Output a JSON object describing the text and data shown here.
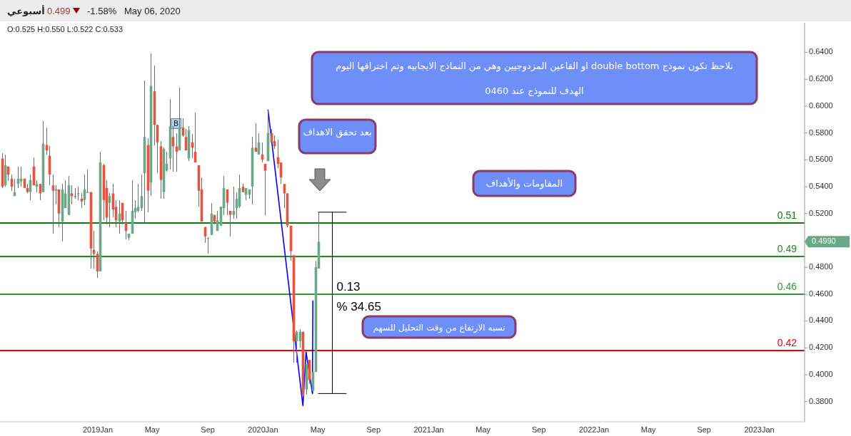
{
  "chart_data": {
    "type": "candlestick",
    "title": "أسبوعي",
    "subtitle": "O:0.525 H:0.550 L:0.522 C:0.533",
    "annotations": [
      "0.499",
      "-1.58%",
      "May 06, 2020",
      "نلاحظ تكون نموذج double bottom او القاعين المزدوجيين وهي من النماذج الايجابيه وتم اختراقها اليوم",
      "الهدف للنموذج عند 0460",
      "بعد تحقق الاهداف",
      "المقاومات والأهداف",
      "نسبه الارتفاع من وقت التحليل للسهم",
      "0.13",
      "% 34.65",
      {
        "text": "B",
        "x": "2019-06-23",
        "y": 0.587
      },
      "0.4990"
    ],
    "series": [
      {
        "x": [
          "2018-06-03",
          "2018-06-10",
          "2018-06-17",
          "2018-06-24",
          "2018-07-01",
          "2018-07-08",
          "2018-07-15",
          "2018-07-22",
          "2018-07-29",
          "2018-08-05",
          "2018-08-12",
          "2018-08-19",
          "2018-08-26",
          "2018-09-02",
          "2018-09-09",
          "2018-09-16",
          "2018-09-23",
          "2018-09-30",
          "2018-10-07",
          "2018-10-14",
          "2018-10-21",
          "2018-10-28",
          "2018-11-04",
          "2018-11-11",
          "2018-11-18",
          "2018-11-25",
          "2018-12-02",
          "2018-12-09",
          "2018-12-16",
          "2018-12-23",
          "2018-12-30",
          "2019-01-06",
          "2019-01-13",
          "2019-01-20",
          "2019-01-27",
          "2019-02-03",
          "2019-02-10",
          "2019-02-17",
          "2019-02-24",
          "2019-03-03",
          "2019-03-10",
          "2019-03-17",
          "2019-03-24",
          "2019-03-31",
          "2019-04-07",
          "2019-04-14",
          "2019-04-21",
          "2019-04-28",
          "2019-05-05",
          "2019-05-12",
          "2019-05-19",
          "2019-05-26",
          "2019-06-02",
          "2019-06-09",
          "2019-06-16",
          "2019-06-23",
          "2019-06-30",
          "2019-07-07",
          "2019-07-14",
          "2019-07-21",
          "2019-07-28",
          "2019-08-04",
          "2019-08-11",
          "2019-08-18",
          "2019-08-25",
          "2019-09-01",
          "2019-09-08",
          "2019-09-15",
          "2019-09-22",
          "2019-09-29",
          "2019-10-06",
          "2019-10-13",
          "2019-10-20",
          "2019-10-27",
          "2019-11-03",
          "2019-11-10",
          "2019-11-17",
          "2019-11-24",
          "2019-12-01",
          "2019-12-08",
          "2019-12-15",
          "2019-12-22",
          "2019-12-29",
          "2020-01-05",
          "2020-01-12",
          "2020-01-19",
          "2020-01-26",
          "2020-02-02",
          "2020-02-09",
          "2020-02-16",
          "2020-02-23",
          "2020-03-01",
          "2020-03-08",
          "2020-03-15",
          "2020-03-22",
          "2020-03-29",
          "2020-04-05",
          "2020-04-12",
          "2020-04-19",
          "2020-04-26",
          "2020-05-03"
        ],
        "ohlc": [
          [
            0.561,
            0.565,
            0.539,
            0.54
          ],
          [
            0.541,
            0.564,
            0.54,
            0.556
          ],
          [
            0.555,
            0.555,
            0.544,
            0.549
          ],
          [
            0.546,
            0.549,
            0.537,
            0.54
          ],
          [
            0.533,
            0.546,
            0.533,
            0.536
          ],
          [
            0.542,
            0.555,
            0.539,
            0.546
          ],
          [
            0.544,
            0.555,
            0.54,
            0.546
          ],
          [
            0.546,
            0.546,
            0.539,
            0.539
          ],
          [
            0.539,
            0.542,
            0.535,
            0.536
          ],
          [
            0.536,
            0.549,
            0.53,
            0.545
          ],
          [
            0.555,
            0.562,
            0.541,
            0.541
          ],
          [
            0.54,
            0.545,
            0.536,
            0.542
          ],
          [
            0.542,
            0.542,
            0.53,
            0.535
          ],
          [
            0.536,
            0.589,
            0.536,
            0.572
          ],
          [
            0.571,
            0.584,
            0.564,
            0.567
          ],
          [
            0.563,
            0.57,
            0.541,
            0.549
          ],
          [
            0.541,
            0.549,
            0.505,
            0.537
          ],
          [
            0.537,
            0.541,
            0.527,
            0.538
          ],
          [
            0.538,
            0.538,
            0.51,
            0.52
          ],
          [
            0.514,
            0.542,
            0.499,
            0.538
          ],
          [
            0.524,
            0.545,
            0.524,
            0.535
          ],
          [
            0.519,
            0.548,
            0.519,
            0.541
          ],
          [
            0.535,
            0.541,
            0.527,
            0.533
          ],
          [
            0.533,
            0.539,
            0.531,
            0.533
          ],
          [
            0.535,
            0.54,
            0.53,
            0.535
          ],
          [
            0.531,
            0.535,
            0.524,
            0.529
          ],
          [
            0.53,
            0.549,
            0.526,
            0.538
          ],
          [
            0.536,
            0.553,
            0.536,
            0.536
          ],
          [
            0.536,
            0.536,
            0.479,
            0.494
          ],
          [
            0.493,
            0.507,
            0.479,
            0.49
          ],
          [
            0.49,
            0.492,
            0.472,
            0.477
          ],
          [
            0.477,
            0.566,
            0.477,
            0.558
          ],
          [
            0.556,
            0.557,
            0.515,
            0.53
          ],
          [
            0.539,
            0.545,
            0.512,
            0.517
          ],
          [
            0.528,
            0.535,
            0.51,
            0.533
          ],
          [
            0.535,
            0.542,
            0.517,
            0.523
          ],
          [
            0.525,
            0.53,
            0.51,
            0.515
          ],
          [
            0.514,
            0.53,
            0.505,
            0.52
          ],
          [
            0.528,
            0.528,
            0.512,
            0.515
          ],
          [
            0.513,
            0.522,
            0.501,
            0.507
          ],
          [
            0.502,
            0.505,
            0.5,
            0.505
          ],
          [
            0.505,
            0.545,
            0.505,
            0.522
          ],
          [
            0.521,
            0.53,
            0.516,
            0.524
          ],
          [
            0.522,
            0.542,
            0.521,
            0.525
          ],
          [
            0.524,
            0.549,
            0.522,
            0.533
          ],
          [
            0.55,
            0.619,
            0.513,
            0.577
          ],
          [
            0.571,
            0.576,
            0.521,
            0.537
          ],
          [
            0.543,
            0.639,
            0.533,
            0.615
          ],
          [
            0.611,
            0.63,
            0.571,
            0.586
          ],
          [
            0.586,
            0.586,
            0.55,
            0.573
          ],
          [
            0.57,
            0.574,
            0.531,
            0.545
          ],
          [
            0.536,
            0.569,
            0.531,
            0.568
          ],
          [
            0.552,
            0.566,
            0.551,
            0.557
          ],
          [
            0.561,
            0.605,
            0.553,
            0.585
          ],
          [
            0.577,
            0.585,
            0.551,
            0.57
          ],
          [
            0.57,
            0.58,
            0.551,
            0.566
          ],
          [
            0.567,
            0.614,
            0.567,
            0.584
          ],
          [
            0.584,
            0.591,
            0.577,
            0.578
          ],
          [
            0.577,
            0.583,
            0.567,
            0.567
          ],
          [
            0.561,
            0.585,
            0.559,
            0.582
          ],
          [
            0.573,
            0.579,
            0.561,
            0.569
          ],
          [
            0.566,
            0.595,
            0.558,
            0.558
          ],
          [
            0.556,
            0.556,
            0.525,
            0.537
          ],
          [
            0.538,
            0.547,
            0.514,
            0.514
          ],
          [
            0.51,
            0.51,
            0.498,
            0.503
          ],
          [
            0.502,
            0.502,
            0.49,
            0.502
          ],
          [
            0.504,
            0.528,
            0.504,
            0.52
          ],
          [
            0.519,
            0.519,
            0.512,
            0.514
          ],
          [
            0.507,
            0.522,
            0.507,
            0.515
          ],
          [
            0.511,
            0.525,
            0.511,
            0.525
          ],
          [
            0.524,
            0.548,
            0.519,
            0.539
          ],
          [
            0.538,
            0.538,
            0.519,
            0.528
          ],
          [
            0.522,
            0.522,
            0.503,
            0.519
          ],
          [
            0.519,
            0.54,
            0.516,
            0.522
          ],
          [
            0.524,
            0.536,
            0.516,
            0.531
          ],
          [
            0.525,
            0.549,
            0.524,
            0.539
          ],
          [
            0.54,
            0.542,
            0.536,
            0.536
          ],
          [
            0.534,
            0.539,
            0.53,
            0.539
          ],
          [
            0.534,
            0.538,
            0.531,
            0.538
          ],
          [
            0.54,
            0.577,
            0.527,
            0.569
          ],
          [
            0.569,
            0.587,
            0.566,
            0.566
          ],
          [
            0.564,
            0.58,
            0.564,
            0.573
          ],
          [
            0.564,
            0.573,
            0.558,
            0.56
          ],
          [
            0.557,
            0.557,
            0.519,
            0.552
          ],
          [
            0.559,
            0.597,
            0.559,
            0.58
          ],
          [
            0.58,
            0.583,
            0.573,
            0.573
          ],
          [
            0.574,
            0.578,
            0.568,
            0.57
          ],
          [
            0.562,
            0.575,
            0.554,
            0.557
          ],
          [
            0.558,
            0.558,
            0.542,
            0.547
          ],
          [
            0.542,
            0.542,
            0.524,
            0.535
          ],
          [
            0.535,
            0.535,
            0.51,
            0.511
          ],
          [
            0.511,
            0.511,
            0.485,
            0.492
          ],
          [
            0.489,
            0.489,
            0.409,
            0.425
          ],
          [
            0.425,
            0.433,
            0.409,
            0.432
          ],
          [
            0.425,
            0.434,
            0.42,
            0.432
          ],
          [
            0.432,
            0.432,
            0.384,
            0.384
          ],
          [
            0.389,
            0.408,
            0.385,
            0.408
          ],
          [
            0.411,
            0.411,
            0.393,
            0.396
          ],
          [
            0.388,
            0.402,
            0.386,
            0.402
          ],
          [
            0.402,
            0.485,
            0.402,
            0.48
          ],
          [
            0.479,
            0.521,
            0.479,
            0.499
          ]
        ],
        "colors": [
          "#e8533f",
          "#6aa889",
          "#e8533f",
          "#e8533f",
          "#6aa889",
          "#6aa889",
          "#6aa889",
          "#e8533f",
          "#e8533f",
          "#6aa889",
          "#e8533f",
          "#6aa889",
          "#e8533f",
          "#6aa889",
          "#e8533f",
          "#e8533f",
          "#e8533f",
          "#6aa889",
          "#e8533f",
          "#6aa889",
          "#6aa889",
          "#6aa889",
          "#e8533f",
          "#6e6e6e",
          "#6e6e6e",
          "#e8533f",
          "#6aa889",
          "#6e6e6e",
          "#e8533f",
          "#e8533f",
          "#e8533f",
          "#6aa889",
          "#e8533f",
          "#e8533f",
          "#6aa889",
          "#e8533f",
          "#e8533f",
          "#6aa889",
          "#e8533f",
          "#e8533f",
          "#6aa889",
          "#6aa889",
          "#6aa889",
          "#6aa889",
          "#6aa889",
          "#6aa889",
          "#e8533f",
          "#6aa889",
          "#e8533f",
          "#e8533f",
          "#e8533f",
          "#6aa889",
          "#6aa889",
          "#6aa889",
          "#e8533f",
          "#e8533f",
          "#6aa889",
          "#e8533f",
          "#e8533f",
          "#6aa889",
          "#e8533f",
          "#e8533f",
          "#e8533f",
          "#e8533f",
          "#e8533f",
          "#6e6e6e",
          "#6aa889",
          "#e8533f",
          "#6aa889",
          "#6aa889",
          "#6aa889",
          "#e8533f",
          "#e8533f",
          "#6aa889",
          "#6aa889",
          "#6aa889",
          "#e8533f",
          "#6aa889",
          "#6aa889",
          "#6aa889",
          "#e8533f",
          "#6aa889",
          "#e8533f",
          "#e8533f",
          "#6aa889",
          "#e8533f",
          "#e8533f",
          "#e8533f",
          "#e8533f",
          "#e8533f",
          "#e8533f",
          "#e8533f",
          "#e8533f",
          "#6aa889",
          "#6aa889",
          "#e8533f",
          "#6aa889",
          "#e8533f",
          "#6aa889",
          "#6aa889",
          "#6aa889"
        ]
      },
      {
        "type": "line",
        "color": "#0000ff",
        "x": [
          "2020-01-12",
          "2020-03-29",
          "2020-04-05",
          "2020-04-19",
          "2020-04-20"
        ],
        "values": [
          0.597,
          0.377,
          0.417,
          0.386,
          0.455
        ]
      }
    ],
    "xlim": [
      "2018-05-30",
      "2023-04-11"
    ],
    "xticks": [
      {
        "value": "2019-01-01",
        "label": "2019Jan"
      },
      {
        "value": "2019-05-01",
        "label": "May"
      },
      {
        "value": "2019-09-01",
        "label": "Sep"
      },
      {
        "value": "2020-01-01",
        "label": "2020Jan"
      },
      {
        "value": "2020-05-01",
        "label": "May"
      },
      {
        "value": "2020-09-01",
        "label": "Sep"
      },
      {
        "value": "2021-01-01",
        "label": "2021Jan"
      },
      {
        "value": "2021-05-01",
        "label": "May"
      },
      {
        "value": "2021-09-01",
        "label": "Sep"
      },
      {
        "value": "2022-01-01",
        "label": "2022Jan"
      },
      {
        "value": "2022-05-01",
        "label": "May"
      },
      {
        "value": "2022-09-01",
        "label": "Sep"
      },
      {
        "value": "2023-01-01",
        "label": "2023Jan"
      }
    ],
    "ylim": [
      0.365,
      0.662
    ],
    "yticks": [
      {
        "value": 0.38,
        "label": "0.3800"
      },
      {
        "value": 0.4,
        "label": "0.4000"
      },
      {
        "value": 0.42,
        "label": "0.4200"
      },
      {
        "value": 0.44,
        "label": "0.4400"
      },
      {
        "value": 0.46,
        "label": "0.4600"
      },
      {
        "value": 0.48,
        "label": "0.4800"
      },
      {
        "value": 0.52,
        "label": "0.5200"
      },
      {
        "value": 0.54,
        "label": "0.5400"
      },
      {
        "value": 0.56,
        "label": "0.5600"
      },
      {
        "value": 0.58,
        "label": "0.5800"
      },
      {
        "value": 0.6,
        "label": "0.6000"
      },
      {
        "value": 0.62,
        "label": "0.6200"
      },
      {
        "value": 0.64,
        "label": "0.6400"
      }
    ],
    "ref_lines": [
      {
        "axis": "y",
        "value": 0.513,
        "label": "0.51",
        "color": "#0a7a0a"
      },
      {
        "axis": "y",
        "value": 0.488,
        "label": "0.49",
        "color": "#1f8c1f"
      },
      {
        "axis": "y",
        "value": 0.46,
        "label": "0.46",
        "color": "#2e9a35"
      },
      {
        "axis": "y",
        "value": 0.418,
        "label": "0.42",
        "color": "#f00000"
      }
    ]
  }
}
